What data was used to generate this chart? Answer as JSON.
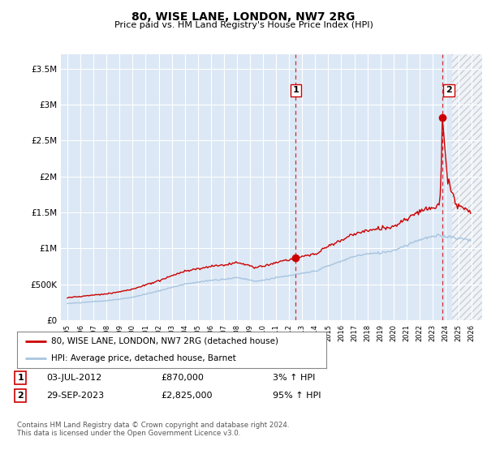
{
  "title": "80, WISE LANE, LONDON, NW7 2RG",
  "subtitle": "Price paid vs. HM Land Registry's House Price Index (HPI)",
  "ylabel_ticks": [
    "£0",
    "£500K",
    "£1M",
    "£1.5M",
    "£2M",
    "£2.5M",
    "£3M",
    "£3.5M"
  ],
  "ytick_values": [
    0,
    500000,
    1000000,
    1500000,
    2000000,
    2500000,
    3000000,
    3500000
  ],
  "ylim": [
    0,
    3700000
  ],
  "xlim_start": 1994.5,
  "xlim_end": 2026.8,
  "hpi_color": "#a8c4e0",
  "price_color": "#cc0000",
  "hatch_start": 2024.5,
  "transaction1_year": 2012.5,
  "transaction1_price": 870000,
  "transaction2_year": 2023.75,
  "transaction2_price": 2825000,
  "legend_line1": "80, WISE LANE, LONDON, NW7 2RG (detached house)",
  "legend_line2": "HPI: Average price, detached house, Barnet",
  "table1_date": "03-JUL-2012",
  "table1_price": "£870,000",
  "table1_hpi": "3% ↑ HPI",
  "table2_date": "29-SEP-2023",
  "table2_price": "£2,825,000",
  "table2_hpi": "95% ↑ HPI",
  "footer": "Contains HM Land Registry data © Crown copyright and database right 2024.\nThis data is licensed under the Open Government Licence v3.0.",
  "plot_bg_color": "#dce8f5",
  "fig_bg_color": "#ffffff"
}
